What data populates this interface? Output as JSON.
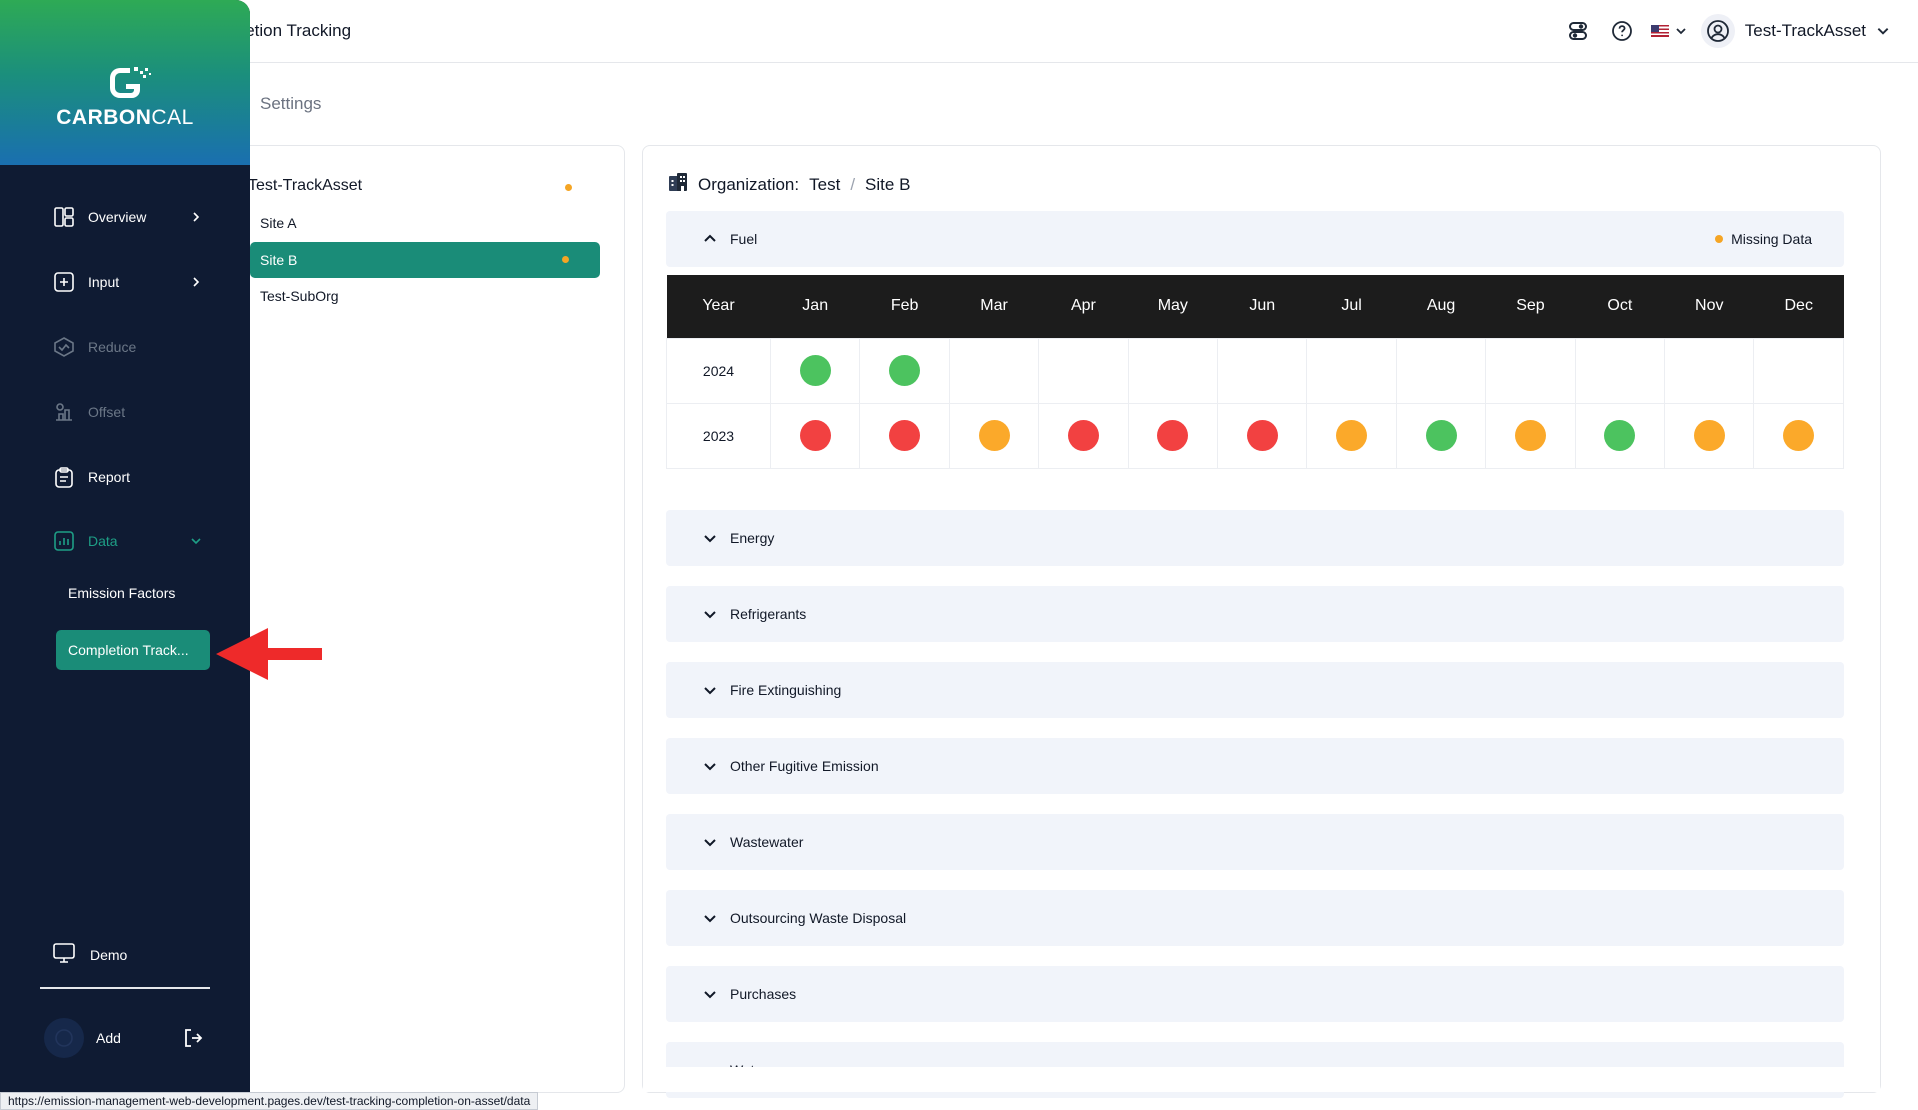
{
  "header": {
    "page_title": "pletion Tracking",
    "user_name": "Test-TrackAsset",
    "settings_tab": "Settings"
  },
  "sidebar": {
    "brand": {
      "part1": "CARBON",
      "part2": "CAL"
    },
    "items": [
      {
        "label": "Overview",
        "icon": "overview-icon"
      },
      {
        "label": "Input",
        "icon": "input-icon"
      },
      {
        "label": "Reduce",
        "icon": "reduce-icon"
      },
      {
        "label": "Offset",
        "icon": "offset-icon"
      },
      {
        "label": "Report",
        "icon": "report-icon"
      },
      {
        "label": "Data",
        "icon": "data-icon"
      }
    ],
    "sub_items": [
      "Emission Factors",
      "Completion Track..."
    ],
    "demo_label": "Demo",
    "add_label": "Add"
  },
  "tree": {
    "root": "Test-TrackAsset",
    "children": [
      "Site A",
      "Site B",
      "Test-SubOrg"
    ],
    "selected": "Site B"
  },
  "main": {
    "org_label": "Organization:",
    "org_name": "Test",
    "site_name": "Site B",
    "fuel_section": "Fuel",
    "legend_missing": "Missing Data",
    "table": {
      "headers": [
        "Year",
        "Jan",
        "Feb",
        "Mar",
        "Apr",
        "May",
        "Jun",
        "Jul",
        "Aug",
        "Sep",
        "Oct",
        "Nov",
        "Dec"
      ],
      "rows": [
        {
          "year": "2024",
          "statuses": [
            "green",
            "green",
            "",
            "",
            "",
            "",
            "",
            "",
            "",
            "",
            "",
            ""
          ]
        },
        {
          "year": "2023",
          "statuses": [
            "red",
            "red",
            "orange",
            "red",
            "red",
            "red",
            "orange",
            "green",
            "orange",
            "green",
            "orange",
            "orange"
          ]
        }
      ]
    },
    "sections": [
      "Energy",
      "Refrigerants",
      "Fire Extinguishing",
      "Other Fugitive Emission",
      "Wastewater",
      "Outsourcing Waste Disposal",
      "Purchases",
      "Water"
    ]
  },
  "colors": {
    "green": "#4cc35f",
    "red": "#f24141",
    "orange": "#fba92a",
    "accent": "#1a8c78",
    "sidebar_bg": "#0f1b33"
  },
  "statusbar": {
    "url": "https://emission-management-web-development.pages.dev/test-tracking-completion-on-asset/data"
  }
}
